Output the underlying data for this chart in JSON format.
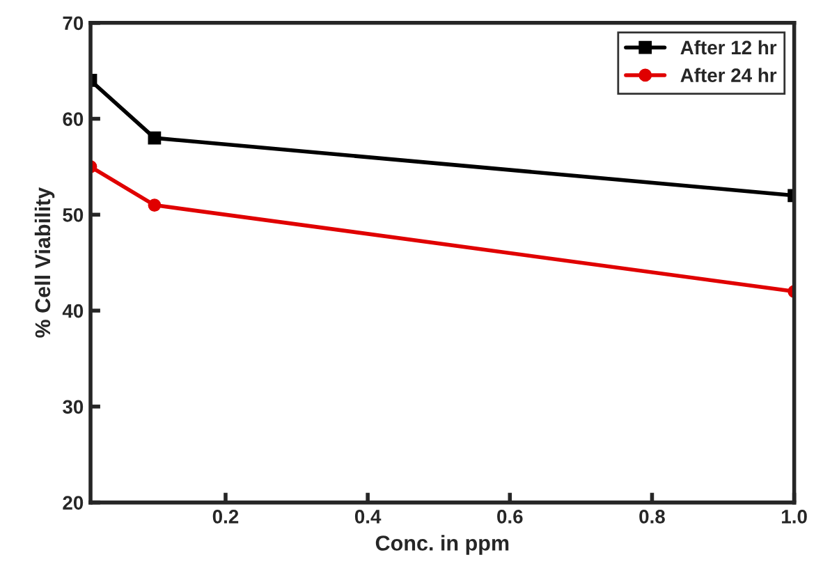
{
  "chart_data": {
    "type": "line",
    "xlabel": "Conc. in ppm",
    "ylabel": "% Cell Viability",
    "x": [
      0.01,
      0.1,
      1.0
    ],
    "series": [
      {
        "name": "After 12 hr",
        "color": "#000000",
        "marker": "square",
        "values": [
          64,
          58,
          52
        ]
      },
      {
        "name": "After 24 hr",
        "color": "#e00000",
        "marker": "circle",
        "values": [
          55,
          51,
          42
        ]
      }
    ],
    "xlim": [
      0.01,
      1.0
    ],
    "xticks": [
      0.2,
      0.4,
      0.6,
      0.8,
      {
        "value": 1.0,
        "label": "1.0"
      }
    ],
    "ylim": [
      20,
      70
    ],
    "yticks": [
      20,
      30,
      40,
      50,
      60,
      70
    ],
    "grid": false,
    "legend": "top right"
  }
}
